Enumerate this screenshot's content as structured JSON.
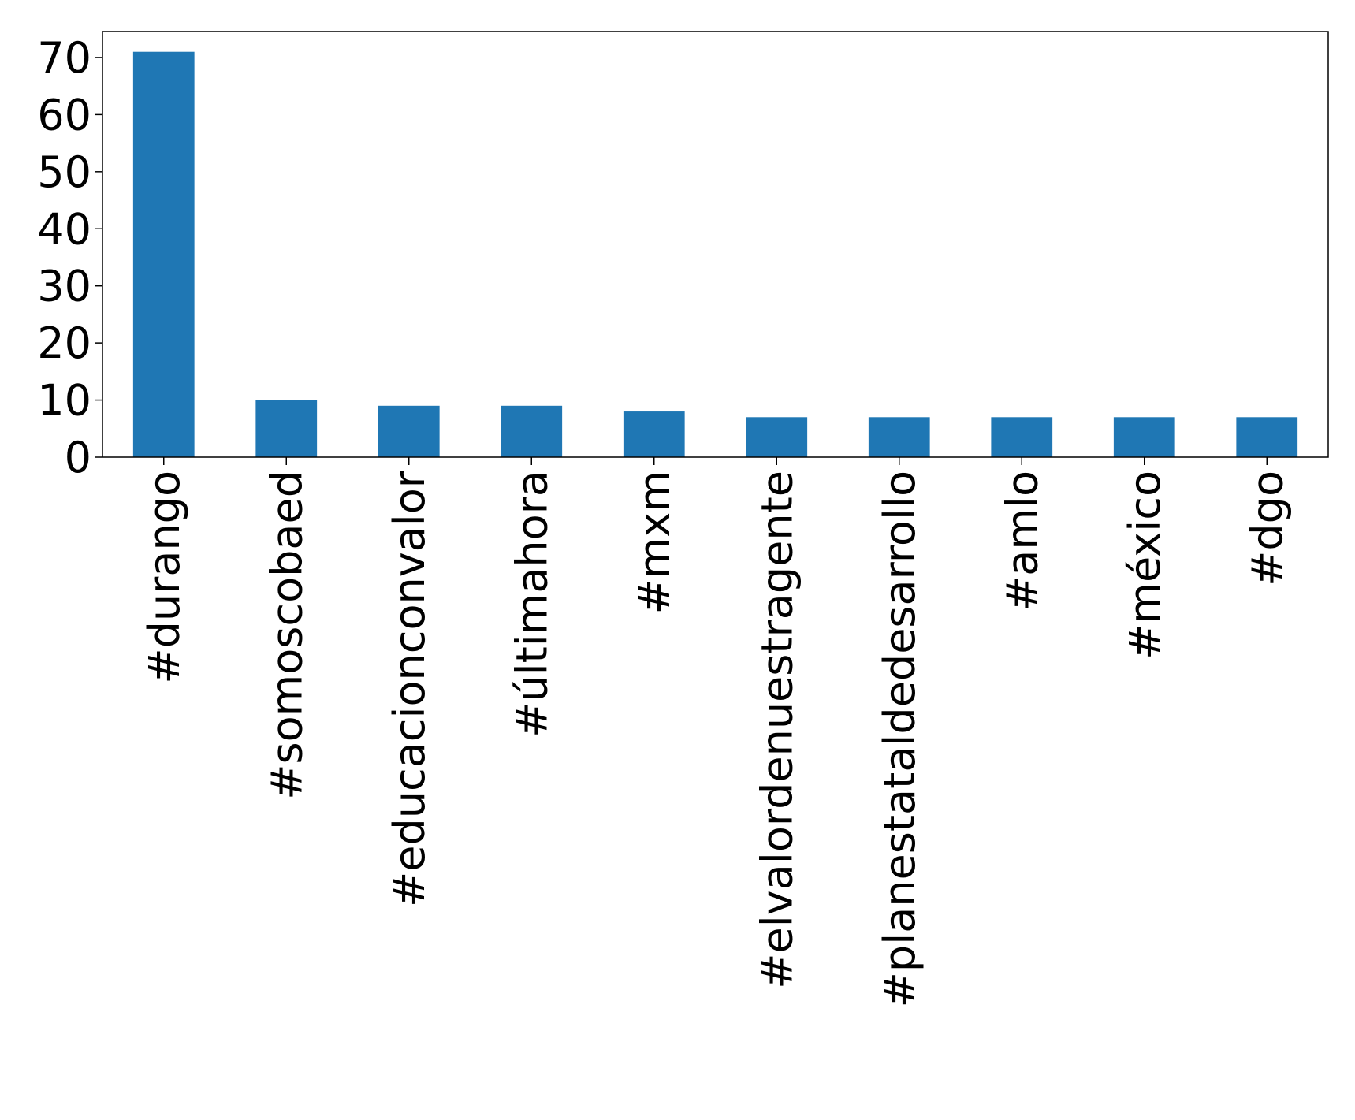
{
  "chart_data": {
    "type": "bar",
    "title": "",
    "xlabel": "",
    "ylabel": "",
    "categories": [
      "#durango",
      "#somoscobaed",
      "#educacionconvalor",
      "#últimahora",
      "#mxm",
      "#elvalordenuestragente",
      "#planestataldedesarrollo",
      "#amlo",
      "#méxico",
      "#dgo"
    ],
    "values": [
      71,
      10,
      9,
      9,
      8,
      7,
      7,
      7,
      7,
      7
    ],
    "ylim": [
      0,
      74.55
    ],
    "yticks": [
      0,
      10,
      20,
      30,
      40,
      50,
      60,
      70
    ],
    "ytick_labels": [
      "0",
      "10",
      "20",
      "30",
      "40",
      "50",
      "60",
      "70"
    ],
    "grid": false,
    "legend": "none",
    "bar_color": "#1f77b4"
  }
}
